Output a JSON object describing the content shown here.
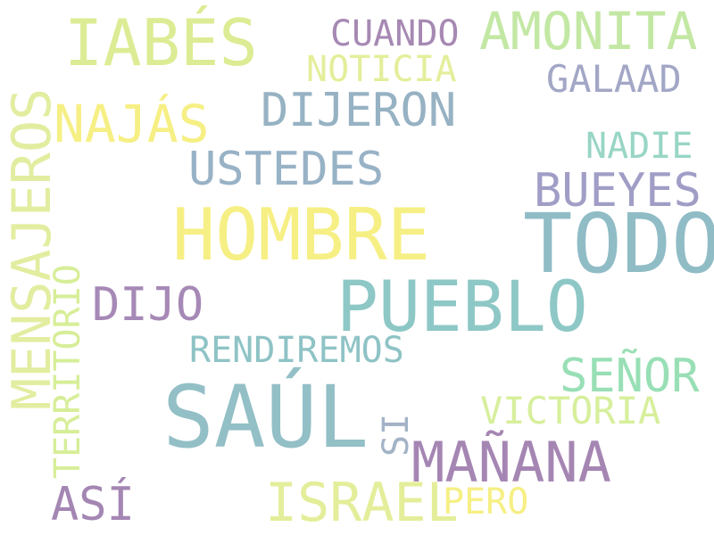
{
  "words": [
    {
      "id": "hombre",
      "text": "HOMBRE",
      "color": "#f6ef84"
    },
    {
      "id": "todo",
      "text": "TODO",
      "color": "#90bcc6"
    },
    {
      "id": "saul",
      "text": "SAÚL",
      "color": "#93bfc6"
    },
    {
      "id": "pueblo",
      "text": "PUEBLO",
      "color": "#8ec8c6"
    },
    {
      "id": "iabes",
      "text": "IABÉS",
      "color": "#dcec94"
    },
    {
      "id": "mensajeros",
      "text": "MENSAJEROS",
      "color": "#e3eda0"
    },
    {
      "id": "amonita",
      "text": "AMONITA",
      "color": "#c3e8a4"
    },
    {
      "id": "najas",
      "text": "NAJÁS",
      "color": "#f6ef84"
    },
    {
      "id": "dijeron",
      "text": "DIJERON",
      "color": "#96b2c3"
    },
    {
      "id": "ustedes",
      "text": "USTEDES",
      "color": "#98b2c6"
    },
    {
      "id": "bueyes",
      "text": "BUEYES",
      "color": "#a09ec6"
    },
    {
      "id": "manana",
      "text": "MAÑANA",
      "color": "#a586b3"
    },
    {
      "id": "israel",
      "text": "ISRAEL",
      "color": "#e4ee9a"
    },
    {
      "id": "senor",
      "text": "SEÑOR",
      "color": "#98dfb5"
    },
    {
      "id": "dijo",
      "text": "DIJO",
      "color": "#a689b6"
    },
    {
      "id": "asi",
      "text": "ASÍ",
      "color": "#a486b3"
    },
    {
      "id": "cuando",
      "text": "CUANDO",
      "color": "#a689b3"
    },
    {
      "id": "galaad",
      "text": "GALAAD",
      "color": "#a3a7c6"
    },
    {
      "id": "noticia",
      "text": "NOTICIA",
      "color": "#e4ee9a"
    },
    {
      "id": "nadie",
      "text": "NADIE",
      "color": "#98d5c5"
    },
    {
      "id": "rendiremos",
      "text": "RENDIREMOS",
      "color": "#8fc3c6"
    },
    {
      "id": "victoria",
      "text": "VICTORIA",
      "color": "#d7ef9c"
    },
    {
      "id": "territorio",
      "text": "TERRITORIO",
      "color": "#d7ee98"
    },
    {
      "id": "si",
      "text": "SI",
      "color": "#a3b3c6"
    },
    {
      "id": "pero",
      "text": "PERO",
      "color": "#f6ef84"
    }
  ]
}
